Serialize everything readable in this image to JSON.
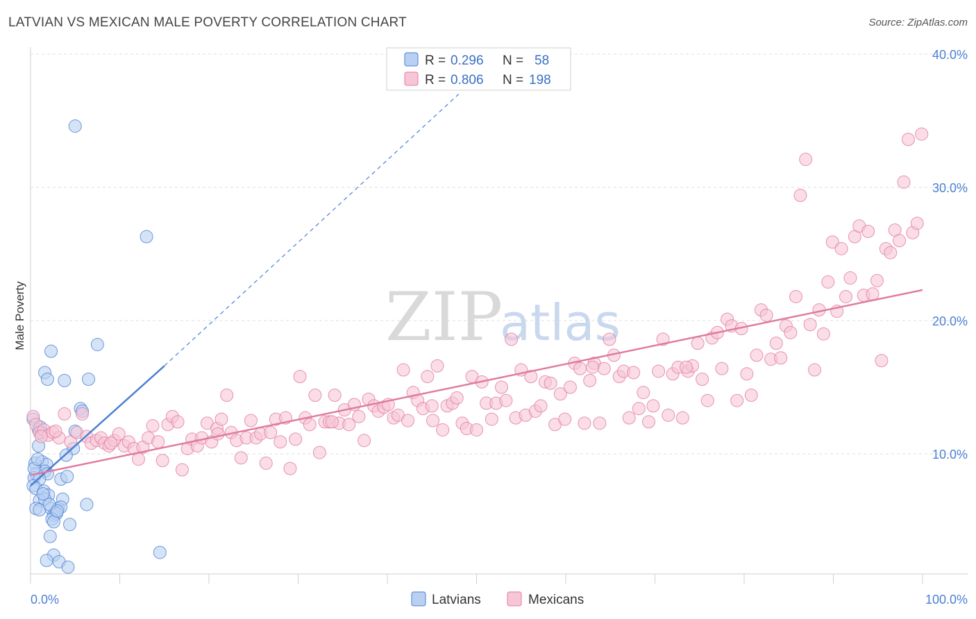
{
  "title": "LATVIAN VS MEXICAN MALE POVERTY CORRELATION CHART",
  "source": "Source: ZipAtlas.com",
  "watermark": {
    "zip": "ZIP",
    "atlas": "atlas"
  },
  "colors": {
    "latvian": "#4a7fd4",
    "latvian_fill": "#b9d0f2",
    "mexican": "#e07aa0",
    "mexican_fill": "#f7c6d6",
    "axis_text": "#4a7fd4"
  },
  "legend": {
    "latvian": {
      "r_label": "R = ",
      "r_value": "0.296",
      "n_label": "N = ",
      "n_value": "58"
    },
    "mexican": {
      "r_label": "R = ",
      "r_value": "0.806",
      "n_label": "N = ",
      "n_value": "198"
    }
  },
  "bottom_legend": [
    "Latvians",
    "Mexicans"
  ],
  "chart_data": {
    "type": "scatter",
    "xlabel": "",
    "ylabel": "Male Poverty",
    "xlim": [
      0,
      100
    ],
    "ylim": [
      0,
      42
    ],
    "x_tick_labels": [
      "0.0%",
      "100.0%"
    ],
    "y_ticks": [
      10,
      20,
      30,
      40
    ],
    "y_tick_labels": [
      "10.0%",
      "20.0%",
      "30.0%",
      "40.0%"
    ],
    "grid": true,
    "series": [
      {
        "name": "Latvians",
        "trend": {
          "x": [
            0,
            15
          ],
          "y": [
            7.6,
            16.6
          ],
          "dashed_to": {
            "x": 48,
            "y": 37
          }
        },
        "points": [
          [
            5,
            34.6
          ],
          [
            13,
            26.3
          ],
          [
            7.5,
            18.2
          ],
          [
            2.3,
            17.7
          ],
          [
            1.6,
            16.1
          ],
          [
            1.9,
            15.6
          ],
          [
            3.8,
            15.5
          ],
          [
            6.5,
            15.6
          ],
          [
            5.6,
            13.4
          ],
          [
            5.8,
            13.2
          ],
          [
            0.3,
            12.6
          ],
          [
            0.9,
            11.8
          ],
          [
            1.2,
            11.6
          ],
          [
            5,
            11.7
          ],
          [
            4.8,
            10.4
          ],
          [
            0.9,
            10.6
          ],
          [
            4,
            9.9
          ],
          [
            0.5,
            9.3
          ],
          [
            1.3,
            9.4
          ],
          [
            1.8,
            9.2
          ],
          [
            1.6,
            8.7
          ],
          [
            1.9,
            8.5
          ],
          [
            0.6,
            8.5
          ],
          [
            0.4,
            8.2
          ],
          [
            1,
            8.1
          ],
          [
            3.4,
            8.1
          ],
          [
            4.1,
            8.3
          ],
          [
            0.3,
            7.6
          ],
          [
            0.6,
            7.4
          ],
          [
            1.5,
            7.2
          ],
          [
            2,
            6.9
          ],
          [
            1,
            6.5
          ],
          [
            1.6,
            6.6
          ],
          [
            3.6,
            6.6
          ],
          [
            6.3,
            6.2
          ],
          [
            0.6,
            5.9
          ],
          [
            1,
            5.8
          ],
          [
            2.3,
            5.9
          ],
          [
            3.1,
            5.9
          ],
          [
            3.4,
            6
          ],
          [
            2.8,
            5.6
          ],
          [
            2.6,
            5.4
          ],
          [
            2.9,
            5.5
          ],
          [
            2.4,
            5.1
          ],
          [
            2.6,
            4.9
          ],
          [
            4.4,
            4.7
          ],
          [
            2.2,
            3.8
          ],
          [
            14.5,
            2.6
          ],
          [
            2.6,
            2.4
          ],
          [
            1.8,
            2.0
          ],
          [
            3.2,
            1.9
          ],
          [
            4.2,
            1.5
          ],
          [
            0.4,
            8.9
          ],
          [
            1.4,
            7.0
          ],
          [
            2.1,
            6.2
          ],
          [
            0.8,
            9.6
          ],
          [
            3.0,
            5.7
          ],
          [
            1.1,
            12.0
          ]
        ]
      },
      {
        "name": "Mexicans",
        "trend": {
          "x": [
            0,
            100
          ],
          "y": [
            8.4,
            22.3
          ]
        },
        "points": [
          [
            0.3,
            12.8
          ],
          [
            0.6,
            12.2
          ],
          [
            1.0,
            11.6
          ],
          [
            1.5,
            11.8
          ],
          [
            2.0,
            11.4
          ],
          [
            2.5,
            11.6
          ],
          [
            3.2,
            11.2
          ],
          [
            3.8,
            13.0
          ],
          [
            4.5,
            10.9
          ],
          [
            5.2,
            11.6
          ],
          [
            5.8,
            13.0
          ],
          [
            6.3,
            11.3
          ],
          [
            6.8,
            10.8
          ],
          [
            7.4,
            11.0
          ],
          [
            7.9,
            11.2
          ],
          [
            8.3,
            10.8
          ],
          [
            8.8,
            10.6
          ],
          [
            9.4,
            11.0
          ],
          [
            9.9,
            11.5
          ],
          [
            10.5,
            10.6
          ],
          [
            11.0,
            10.9
          ],
          [
            11.6,
            10.4
          ],
          [
            12.1,
            9.6
          ],
          [
            12.6,
            10.5
          ],
          [
            13.2,
            11.2
          ],
          [
            13.7,
            12.1
          ],
          [
            14.3,
            10.9
          ],
          [
            14.8,
            9.5
          ],
          [
            15.4,
            12.2
          ],
          [
            15.9,
            12.8
          ],
          [
            16.5,
            12.4
          ],
          [
            17.0,
            8.8
          ],
          [
            17.6,
            10.4
          ],
          [
            18.1,
            11.1
          ],
          [
            18.7,
            10.6
          ],
          [
            19.2,
            11.2
          ],
          [
            19.8,
            12.3
          ],
          [
            20.3,
            10.9
          ],
          [
            20.9,
            11.9
          ],
          [
            21.4,
            12.6
          ],
          [
            22.0,
            14.4
          ],
          [
            22.5,
            11.6
          ],
          [
            23.1,
            11.0
          ],
          [
            23.6,
            9.7
          ],
          [
            24.2,
            11.2
          ],
          [
            24.7,
            12.5
          ],
          [
            25.3,
            11.2
          ],
          [
            25.8,
            11.5
          ],
          [
            26.4,
            9.3
          ],
          [
            26.9,
            11.6
          ],
          [
            27.5,
            12.6
          ],
          [
            28.0,
            10.9
          ],
          [
            28.6,
            12.7
          ],
          [
            29.1,
            8.9
          ],
          [
            29.7,
            11.1
          ],
          [
            30.2,
            15.8
          ],
          [
            30.8,
            12.7
          ],
          [
            31.3,
            12.2
          ],
          [
            31.9,
            14.4
          ],
          [
            32.4,
            10.1
          ],
          [
            33.0,
            12.4
          ],
          [
            33.5,
            12.4
          ],
          [
            34.1,
            14.4
          ],
          [
            34.6,
            12.3
          ],
          [
            35.2,
            13.3
          ],
          [
            35.7,
            12.2
          ],
          [
            36.3,
            13.7
          ],
          [
            36.8,
            12.8
          ],
          [
            37.4,
            11.0
          ],
          [
            37.9,
            14.1
          ],
          [
            38.5,
            13.6
          ],
          [
            39.0,
            13.2
          ],
          [
            39.6,
            13.5
          ],
          [
            40.1,
            13.7
          ],
          [
            40.7,
            12.7
          ],
          [
            41.2,
            12.9
          ],
          [
            41.8,
            16.3
          ],
          [
            42.3,
            12.5
          ],
          [
            42.9,
            14.6
          ],
          [
            43.4,
            14.0
          ],
          [
            44.0,
            13.4
          ],
          [
            44.5,
            15.8
          ],
          [
            45.1,
            12.5
          ],
          [
            45.6,
            16.6
          ],
          [
            46.2,
            11.8
          ],
          [
            46.7,
            13.6
          ],
          [
            47.3,
            13.8
          ],
          [
            47.8,
            14.2
          ],
          [
            48.4,
            12.3
          ],
          [
            48.9,
            11.9
          ],
          [
            49.5,
            15.8
          ],
          [
            50.0,
            11.8
          ],
          [
            50.6,
            15.4
          ],
          [
            51.1,
            13.8
          ],
          [
            51.7,
            12.6
          ],
          [
            52.2,
            13.8
          ],
          [
            52.8,
            15.0
          ],
          [
            53.3,
            14.0
          ],
          [
            53.9,
            18.6
          ],
          [
            54.4,
            12.7
          ],
          [
            55.0,
            16.3
          ],
          [
            55.5,
            12.9
          ],
          [
            56.1,
            15.8
          ],
          [
            56.6,
            13.2
          ],
          [
            57.2,
            13.6
          ],
          [
            57.7,
            15.4
          ],
          [
            58.3,
            15.3
          ],
          [
            58.8,
            12.2
          ],
          [
            59.4,
            14.5
          ],
          [
            59.9,
            12.6
          ],
          [
            60.5,
            15.0
          ],
          [
            61.0,
            16.8
          ],
          [
            61.6,
            16.4
          ],
          [
            62.1,
            12.3
          ],
          [
            62.7,
            15.5
          ],
          [
            63.2,
            16.8
          ],
          [
            63.8,
            12.3
          ],
          [
            64.3,
            16.4
          ],
          [
            64.9,
            18.6
          ],
          [
            65.4,
            17.4
          ],
          [
            66.0,
            15.8
          ],
          [
            66.5,
            16.2
          ],
          [
            67.1,
            12.7
          ],
          [
            67.6,
            16.1
          ],
          [
            68.2,
            13.4
          ],
          [
            68.7,
            14.6
          ],
          [
            69.3,
            12.4
          ],
          [
            69.8,
            13.6
          ],
          [
            70.4,
            16.2
          ],
          [
            70.9,
            18.6
          ],
          [
            71.5,
            12.9
          ],
          [
            72.0,
            16.0
          ],
          [
            72.6,
            16.5
          ],
          [
            73.1,
            12.7
          ],
          [
            73.7,
            16.2
          ],
          [
            74.2,
            16.6
          ],
          [
            74.8,
            18.3
          ],
          [
            75.3,
            15.6
          ],
          [
            75.9,
            14.0
          ],
          [
            76.4,
            18.7
          ],
          [
            77.0,
            19.1
          ],
          [
            77.5,
            16.4
          ],
          [
            78.1,
            20.1
          ],
          [
            78.6,
            19.6
          ],
          [
            79.2,
            14.0
          ],
          [
            79.7,
            19.4
          ],
          [
            80.3,
            16.0
          ],
          [
            80.8,
            14.4
          ],
          [
            81.4,
            17.4
          ],
          [
            81.9,
            20.8
          ],
          [
            82.5,
            20.4
          ],
          [
            83.0,
            17.1
          ],
          [
            83.6,
            18.3
          ],
          [
            84.1,
            17.2
          ],
          [
            84.7,
            19.6
          ],
          [
            85.2,
            19.1
          ],
          [
            85.8,
            21.8
          ],
          [
            86.3,
            29.4
          ],
          [
            86.9,
            32.1
          ],
          [
            87.4,
            19.7
          ],
          [
            87.9,
            16.3
          ],
          [
            88.4,
            20.8
          ],
          [
            88.9,
            19.0
          ],
          [
            89.4,
            22.9
          ],
          [
            89.9,
            25.9
          ],
          [
            90.4,
            20.7
          ],
          [
            90.9,
            25.4
          ],
          [
            91.4,
            21.8
          ],
          [
            91.9,
            23.2
          ],
          [
            92.4,
            26.3
          ],
          [
            92.9,
            27.1
          ],
          [
            93.4,
            21.9
          ],
          [
            93.9,
            26.7
          ],
          [
            94.4,
            22.0
          ],
          [
            94.9,
            23.0
          ],
          [
            95.4,
            17.0
          ],
          [
            95.9,
            25.4
          ],
          [
            96.4,
            25.1
          ],
          [
            96.9,
            26.8
          ],
          [
            97.4,
            26.0
          ],
          [
            97.9,
            30.4
          ],
          [
            98.4,
            33.6
          ],
          [
            98.9,
            26.6
          ],
          [
            99.4,
            27.3
          ],
          [
            99.9,
            34.0
          ],
          [
            1.2,
            11.3
          ],
          [
            2.8,
            11.7
          ],
          [
            9.0,
            10.8
          ],
          [
            21.0,
            11.5
          ],
          [
            33.8,
            12.4
          ],
          [
            45.0,
            13.6
          ],
          [
            63.0,
            16.5
          ],
          [
            73.5,
            16.5
          ]
        ]
      }
    ]
  }
}
